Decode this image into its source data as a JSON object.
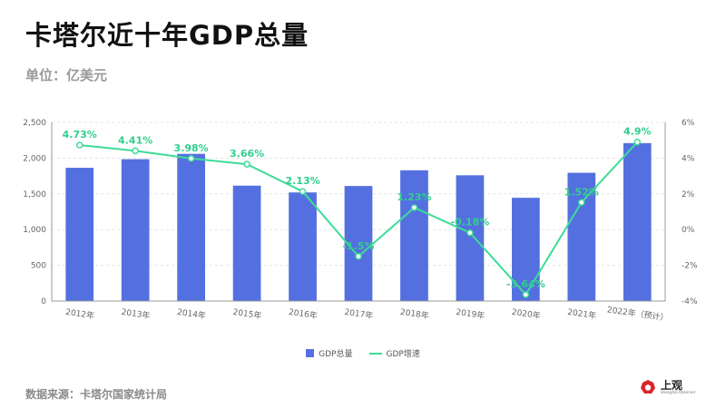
{
  "title": "卡塔尔近十年GDP总量",
  "subtitle": "单位：亿美元",
  "source": "数据来源：卡塔尔国家统计局",
  "logo": {
    "main": "上观",
    "sub": "Shanghai Observer",
    "icon": "shanghai-observer-logo-icon"
  },
  "colors": {
    "bar": "#5470e0",
    "line": "#3ddc97",
    "label": "#2fcf8d",
    "axis": "#666666",
    "grid": "#e6e6e6"
  },
  "chart_data": {
    "type": "bar",
    "categories": [
      "2012年",
      "2013年",
      "2014年",
      "2015年",
      "2016年",
      "2017年",
      "2018年",
      "2019年",
      "2020年",
      "2021年",
      "2022年（预计）"
    ],
    "series": [
      {
        "name": "GDP总量",
        "type": "bar",
        "axis": "left",
        "values": [
          1865,
          1985,
          2060,
          1615,
          1520,
          1610,
          1830,
          1760,
          1445,
          1795,
          2210
        ]
      },
      {
        "name": "GDP增速",
        "type": "line",
        "axis": "right",
        "values": [
          4.73,
          4.41,
          3.98,
          3.66,
          2.13,
          -1.5,
          1.23,
          -0.18,
          -3.64,
          1.52,
          4.9
        ],
        "labels": [
          "4.73%",
          "4.41%",
          "3.98%",
          "3.66%",
          "2.13%",
          "-1.5%",
          "1.23%",
          "-0.18%",
          "-3.64%",
          "1.52%",
          "4.9%"
        ]
      }
    ],
    "ylim_left": [
      0,
      2500
    ],
    "yticks_left": [
      0,
      500,
      1000,
      1500,
      2000,
      2500
    ],
    "ytick_labels_left": [
      "0",
      "500",
      "1,000",
      "1,500",
      "2,000",
      "2,500"
    ],
    "ylim_right": [
      -4,
      6
    ],
    "yticks_right": [
      -4,
      -2,
      0,
      2,
      4,
      6
    ],
    "ytick_labels_right": [
      "-4%",
      "-2%",
      "0%",
      "2%",
      "4%",
      "6%"
    ],
    "grid": true,
    "legend_position": "bottom-center"
  }
}
